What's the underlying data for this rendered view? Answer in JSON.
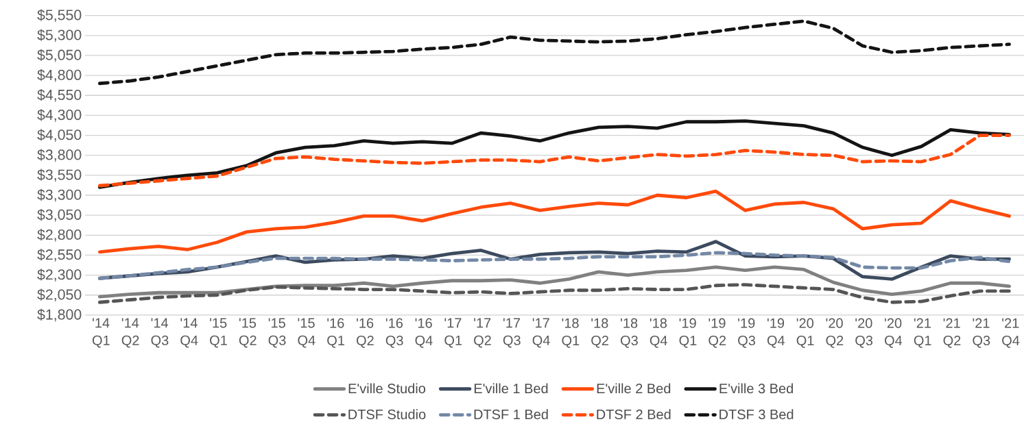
{
  "chart_data": {
    "type": "line",
    "categories": [
      "'14 Q1",
      "'14 Q2",
      "'14 Q3",
      "'14 Q4",
      "'15 Q1",
      "'15 Q2",
      "'15 Q3",
      "'15 Q4",
      "'16 Q1",
      "'16 Q2",
      "'16 Q3",
      "'16 Q4",
      "'17 Q1",
      "'17 Q2",
      "'17 Q3",
      "'17 Q4",
      "'18 Q1",
      "'18 Q2",
      "'18 Q3",
      "'18 Q4",
      "'19 Q1",
      "'19 Q2",
      "'19 Q3",
      "'19 Q4",
      "'20 Q1",
      "'20 Q2",
      "'20 Q3",
      "'20 Q4",
      "'21 Q1",
      "'21 Q2",
      "'21 Q3",
      "'21 Q4"
    ],
    "ylim": [
      1800,
      5550
    ],
    "yticks": [
      {
        "value": 1800,
        "label": "$1,800"
      },
      {
        "value": 2050,
        "label": "$2,050"
      },
      {
        "value": 2300,
        "label": "$2,300"
      },
      {
        "value": 2550,
        "label": "$2,550"
      },
      {
        "value": 2800,
        "label": "$2,800"
      },
      {
        "value": 3050,
        "label": "$3,050"
      },
      {
        "value": 3300,
        "label": "$3,300"
      },
      {
        "value": 3550,
        "label": "$3,550"
      },
      {
        "value": 3800,
        "label": "$3,800"
      },
      {
        "value": 4050,
        "label": "$4,050"
      },
      {
        "value": 4300,
        "label": "$4,300"
      },
      {
        "value": 4550,
        "label": "$4,550"
      },
      {
        "value": 4800,
        "label": "$4,800"
      },
      {
        "value": 5050,
        "label": "$5,050"
      },
      {
        "value": 5300,
        "label": "$5,300"
      },
      {
        "value": 5550,
        "label": "$5,550"
      }
    ],
    "grid": "y",
    "legend": "bottom",
    "marker": "none",
    "series": [
      {
        "name": "E'ville Studio",
        "color": "#808080",
        "line_style": "solid",
        "values": [
          2030,
          2060,
          2080,
          2080,
          2080,
          2120,
          2160,
          2170,
          2170,
          2200,
          2160,
          2200,
          2230,
          2230,
          2240,
          2200,
          2250,
          2340,
          2300,
          2340,
          2360,
          2400,
          2360,
          2400,
          2370,
          2210,
          2110,
          2060,
          2100,
          2200,
          2200,
          2160
        ]
      },
      {
        "name": "E'ville 1 Bed",
        "color": "#3c4a5e",
        "line_style": "solid",
        "values": [
          2260,
          2290,
          2320,
          2340,
          2400,
          2470,
          2540,
          2460,
          2490,
          2500,
          2540,
          2510,
          2570,
          2610,
          2500,
          2560,
          2580,
          2590,
          2570,
          2600,
          2590,
          2720,
          2540,
          2530,
          2540,
          2510,
          2280,
          2250,
          2400,
          2540,
          2500,
          2500
        ]
      },
      {
        "name": "E'ville 2 Bed",
        "color": "#fe4a0a",
        "line_style": "solid",
        "values": [
          2590,
          2630,
          2660,
          2620,
          2710,
          2840,
          2880,
          2900,
          2960,
          3040,
          3040,
          2980,
          3070,
          3150,
          3200,
          3110,
          3160,
          3200,
          3180,
          3300,
          3270,
          3350,
          3110,
          3190,
          3210,
          3130,
          2880,
          2930,
          2950,
          3230,
          3130,
          3040
        ]
      },
      {
        "name": "E'ville 3 Bed",
        "color": "#141414",
        "line_style": "solid",
        "values": [
          3400,
          3460,
          3510,
          3550,
          3580,
          3670,
          3830,
          3900,
          3920,
          3980,
          3950,
          3970,
          3950,
          4080,
          4040,
          3980,
          4080,
          4150,
          4160,
          4140,
          4220,
          4220,
          4230,
          4200,
          4170,
          4080,
          3900,
          3800,
          3910,
          4120,
          4080,
          4060
        ]
      },
      {
        "name": "DTSF Studio",
        "color": "#555555",
        "line_style": "dashed",
        "values": [
          1960,
          1990,
          2020,
          2040,
          2050,
          2110,
          2150,
          2140,
          2130,
          2120,
          2120,
          2100,
          2080,
          2090,
          2070,
          2090,
          2110,
          2110,
          2130,
          2120,
          2120,
          2170,
          2180,
          2160,
          2140,
          2120,
          2020,
          1960,
          1970,
          2040,
          2100,
          2100
        ]
      },
      {
        "name": "DTSF 1 Bed",
        "color": "#7388a6",
        "line_style": "dashed",
        "values": [
          2260,
          2290,
          2330,
          2370,
          2400,
          2460,
          2510,
          2510,
          2510,
          2500,
          2500,
          2490,
          2480,
          2490,
          2500,
          2500,
          2510,
          2530,
          2530,
          2530,
          2550,
          2580,
          2570,
          2550,
          2540,
          2520,
          2400,
          2390,
          2390,
          2480,
          2520,
          2470
        ]
      },
      {
        "name": "DTSF 2 Bed",
        "color": "#fe4a0a",
        "line_style": "dashed",
        "values": [
          3420,
          3450,
          3480,
          3510,
          3540,
          3650,
          3760,
          3780,
          3750,
          3730,
          3710,
          3700,
          3720,
          3740,
          3740,
          3720,
          3780,
          3730,
          3770,
          3810,
          3790,
          3810,
          3860,
          3840,
          3810,
          3800,
          3720,
          3730,
          3720,
          3810,
          4050,
          4050
        ]
      },
      {
        "name": "DTSF 3 Bed",
        "color": "#141414",
        "line_style": "dashed",
        "values": [
          4700,
          4730,
          4780,
          4850,
          4920,
          4990,
          5060,
          5080,
          5080,
          5090,
          5100,
          5130,
          5150,
          5190,
          5280,
          5240,
          5230,
          5220,
          5230,
          5260,
          5310,
          5350,
          5400,
          5440,
          5480,
          5390,
          5170,
          5090,
          5110,
          5150,
          5170,
          5190
        ]
      }
    ]
  }
}
